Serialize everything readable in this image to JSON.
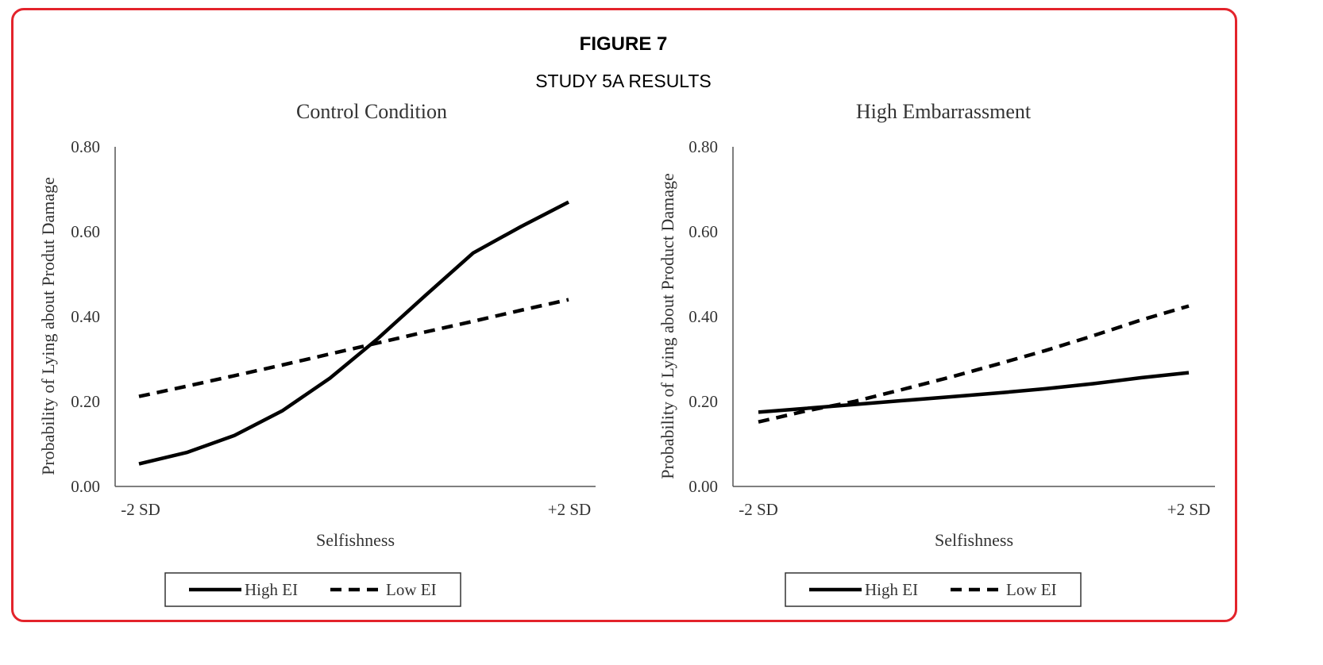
{
  "figure": {
    "title": "FIGURE 7",
    "subtitle": "STUDY 5A RESULTS"
  },
  "colors": {
    "border": "#e3232b",
    "line": "#000000",
    "axis": "#555555",
    "text": "#333333"
  },
  "chart_data": [
    {
      "type": "line",
      "title": "Control Condition",
      "xlabel": "Selfishness",
      "ylabel": "Probability of Lying about Produt Damage",
      "categories": [
        "-2 SD",
        "",
        "",
        "",
        "",
        "",
        "",
        "",
        "",
        "+2 SD"
      ],
      "ylim": [
        0,
        0.8
      ],
      "yticks": [
        "0.00",
        "0.20",
        "0.40",
        "0.60",
        "0.80"
      ],
      "grid": false,
      "legend_position": "bottom",
      "series": [
        {
          "name": "High EI",
          "style": "solid",
          "values": [
            0.053,
            0.08,
            0.12,
            0.178,
            0.255,
            0.348,
            0.45,
            0.55,
            0.612,
            0.67
          ]
        },
        {
          "name": "Low EI",
          "style": "dashed",
          "values": [
            0.212,
            0.236,
            0.261,
            0.286,
            0.312,
            0.338,
            0.364,
            0.389,
            0.415,
            0.44
          ]
        }
      ]
    },
    {
      "type": "line",
      "title": "High Embarrassment",
      "xlabel": "Selfishness",
      "ylabel": "Probability of Lying about Product Damage",
      "categories": [
        "-2 SD",
        "",
        "",
        "",
        "",
        "",
        "",
        "",
        "",
        "+2 SD"
      ],
      "ylim": [
        0,
        0.8
      ],
      "yticks": [
        "0.00",
        "0.20",
        "0.40",
        "0.60",
        "0.80"
      ],
      "grid": false,
      "legend_position": "bottom",
      "series": [
        {
          "name": "High EI",
          "style": "solid",
          "values": [
            0.175,
            0.184,
            0.193,
            0.202,
            0.211,
            0.22,
            0.23,
            0.242,
            0.256,
            0.268
          ]
        },
        {
          "name": "Low EI",
          "style": "dashed",
          "values": [
            0.152,
            0.178,
            0.2,
            0.228,
            0.257,
            0.288,
            0.32,
            0.355,
            0.392,
            0.425
          ]
        }
      ]
    }
  ]
}
